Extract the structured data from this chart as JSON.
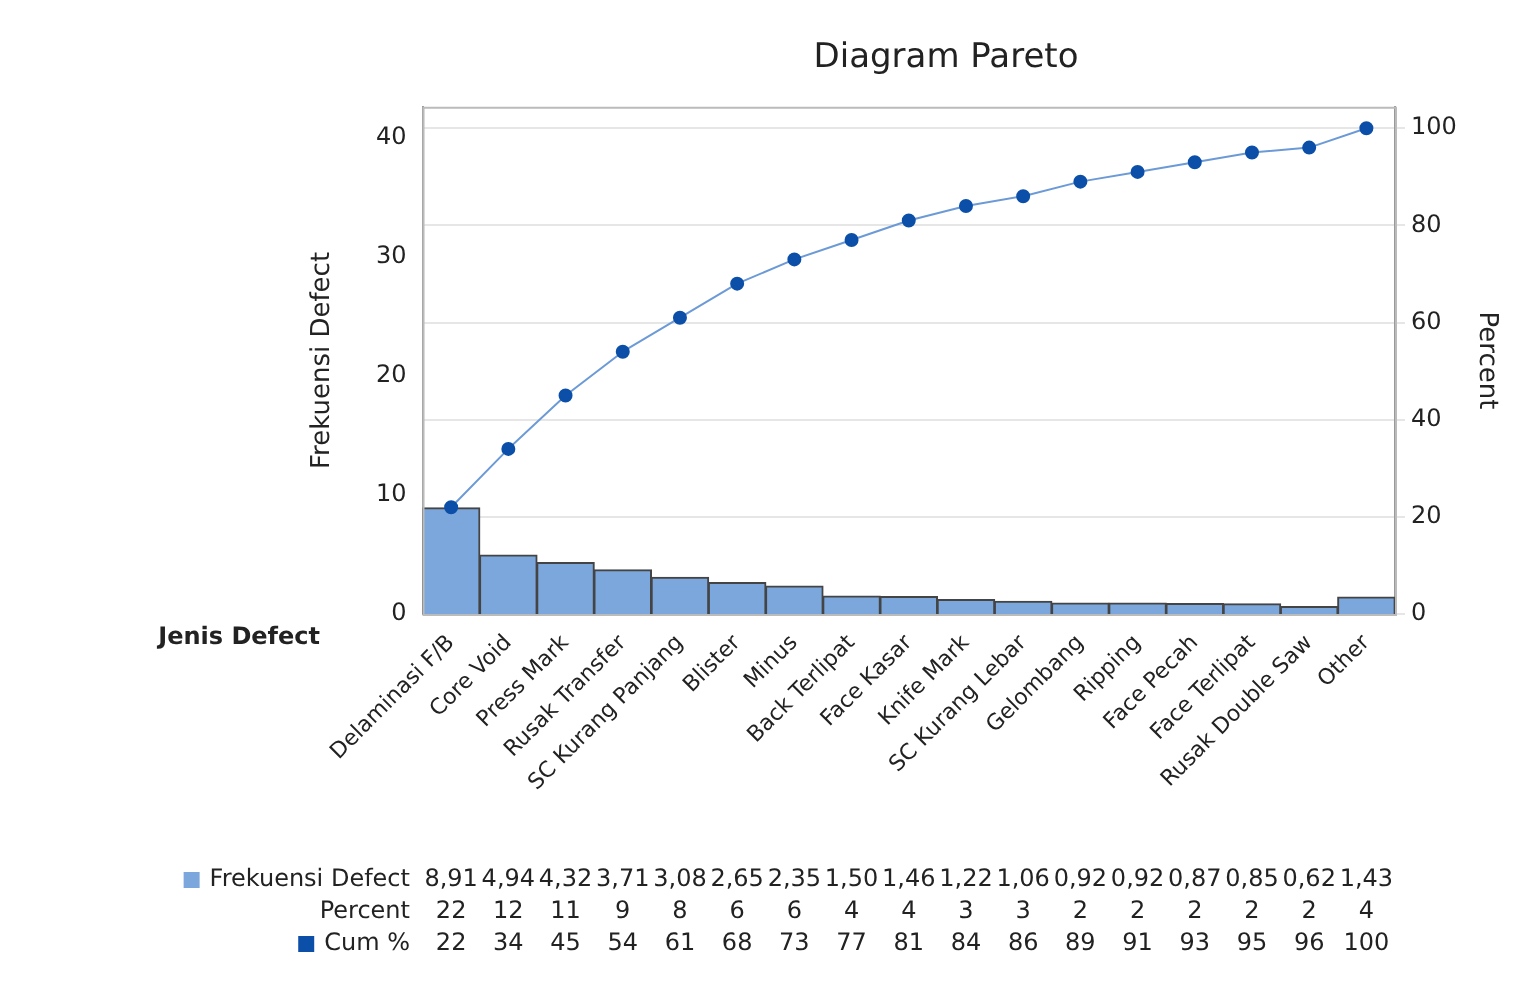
{
  "chart_data": {
    "type": "bar",
    "title": "Diagram Pareto",
    "xlabel": "Jenis Defect",
    "ylabel": "Frekuensi Defect",
    "y2label": "Percent",
    "categories": [
      "Delaminasi F/B",
      "Core Void",
      "Press Mark",
      "Rusak Transfer",
      "SC Kurang Panjang",
      "Blister",
      "Minus",
      "Back Terlipat",
      "Face Kasar",
      "Knife Mark",
      "SC Kurang Lebar",
      "Gelombang",
      "Ripping",
      "Face Pecah",
      "Face Terlipat",
      "Rusak Double Saw",
      "Other"
    ],
    "series": [
      {
        "name": "Frekuensi Defect",
        "color": "#7ba7dc",
        "values": [
          8.91,
          4.94,
          4.32,
          3.71,
          3.08,
          2.65,
          2.35,
          1.5,
          1.46,
          1.22,
          1.06,
          0.92,
          0.92,
          0.87,
          0.85,
          0.62,
          1.43
        ],
        "value_labels": [
          "8,91",
          "4,94",
          "4,32",
          "3,71",
          "3,08",
          "2,65",
          "2,35",
          "1,50",
          "1,46",
          "1,22",
          "1,06",
          "0,92",
          "0,92",
          "0,87",
          "0,85",
          "0,62",
          "1,43"
        ]
      },
      {
        "name": "Cum %",
        "type": "line",
        "axis": "y2",
        "color": "#0b4fa8",
        "values": [
          22,
          34,
          45,
          54,
          61,
          68,
          73,
          77,
          81,
          84,
          86,
          89,
          91,
          93,
          95,
          96,
          100
        ],
        "value_labels": [
          "22",
          "34",
          "45",
          "54",
          "61",
          "68",
          "73",
          "77",
          "81",
          "84",
          "86",
          "89",
          "91",
          "93",
          "95",
          "96",
          "100"
        ]
      }
    ],
    "annotations": [
      "Percent",
      "22",
      "12",
      "11",
      "9",
      "8",
      "6",
      "6",
      "4",
      "4",
      "3",
      "3",
      "2",
      "2",
      "2",
      "2",
      "2",
      "4"
    ],
    "ylim": [
      0,
      42.6
    ],
    "yticks": [
      0,
      10,
      20,
      30,
      40
    ],
    "y2lim": [
      0,
      104.4
    ],
    "y2ticks": [
      0,
      20,
      40,
      60,
      80,
      100
    ],
    "grid": "y2",
    "legend": "bottom left",
    "marker": "circle",
    "line_style": "solid"
  }
}
